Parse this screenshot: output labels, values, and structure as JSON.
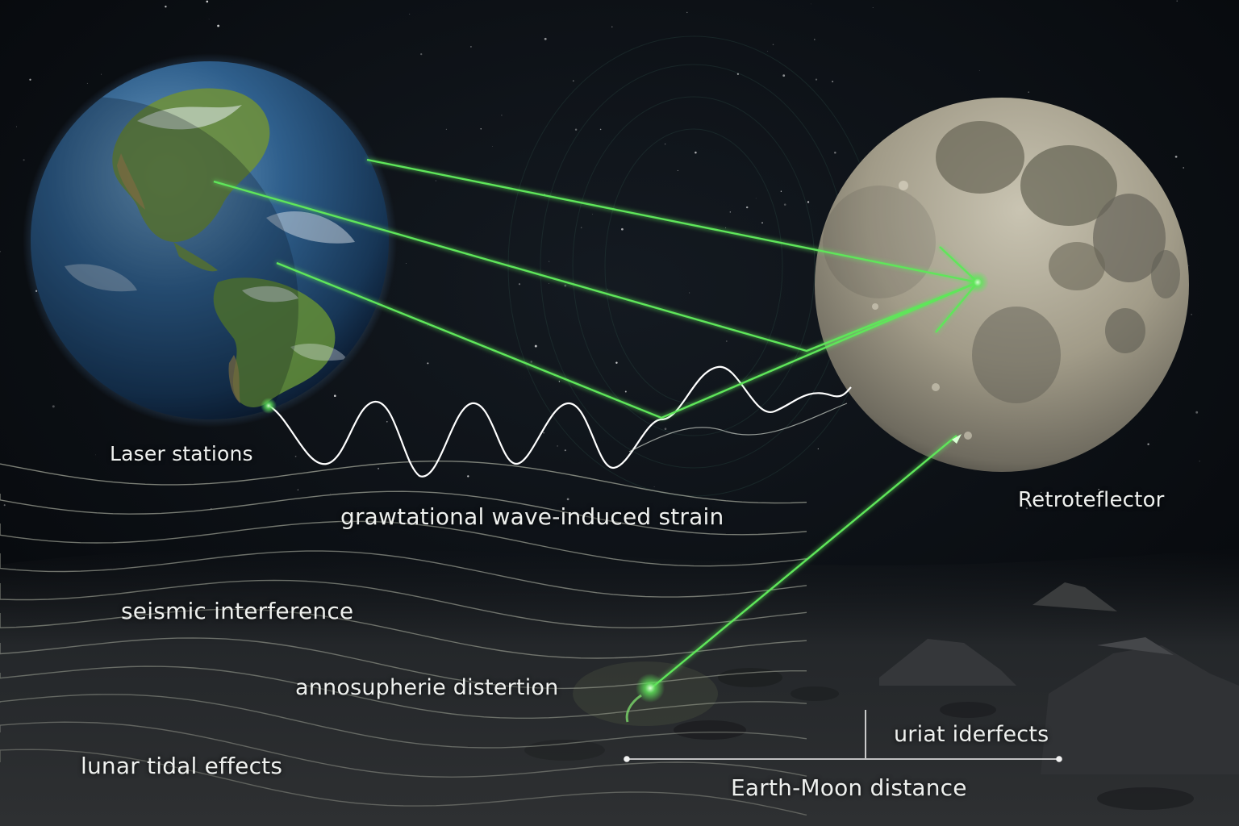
{
  "labels": {
    "laser_stations": "Laser stations",
    "retroreflector": "Retroteflector",
    "grav_wave_strain": "grawtational wave-induced strain",
    "seismic": "seismic interference",
    "atmospheric": "annosupherie distertion",
    "lunar_tidal": "lunar tidal effects",
    "uriat": "uriat iderfects",
    "earth_moon_distance": "Earth-Moon distance"
  },
  "colors": {
    "laser": "#5fe65a",
    "space": "#0a0d12",
    "wave_line": "#ffffff"
  }
}
